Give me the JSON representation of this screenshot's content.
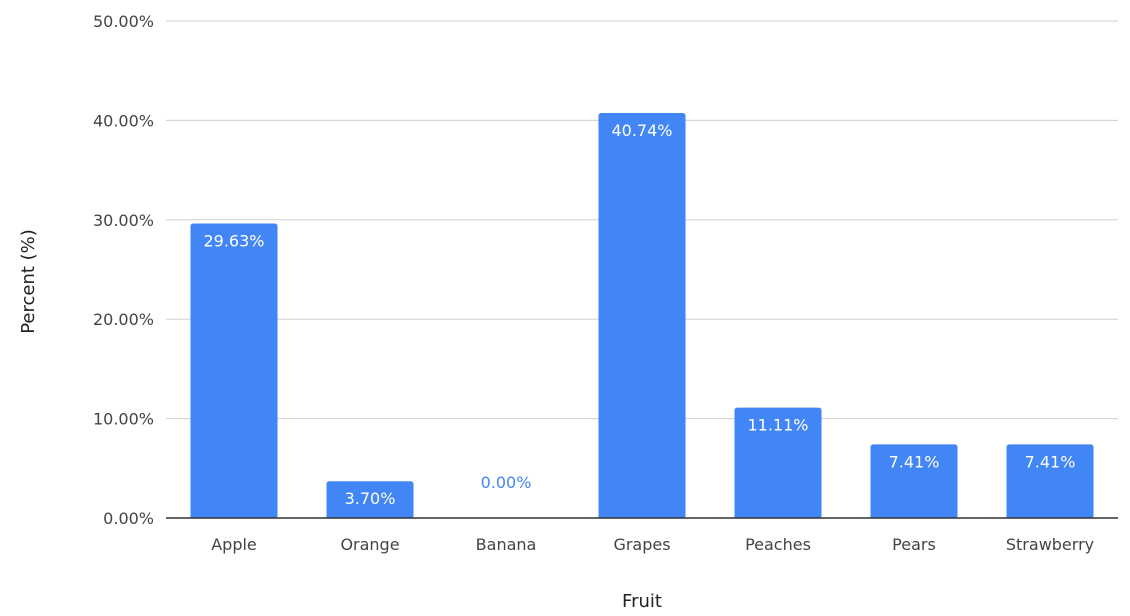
{
  "chart_data": {
    "type": "bar",
    "title": "",
    "xlabel": "Fruit",
    "ylabel": "Percent (%)",
    "categories": [
      "Apple",
      "Orange",
      "Banana",
      "Grapes",
      "Peaches",
      "Pears",
      "Strawberry"
    ],
    "values": [
      29.63,
      3.7,
      0.0,
      40.74,
      11.11,
      7.41,
      7.41
    ],
    "data_labels": [
      "29.63%",
      "3.70%",
      "0.00%",
      "40.74%",
      "11.11%",
      "7.41%",
      "7.41%"
    ],
    "ylim": [
      0,
      50
    ],
    "yticks": [
      0,
      10,
      20,
      30,
      40,
      50
    ],
    "ytick_labels": [
      "0.00%",
      "10.00%",
      "20.00%",
      "30.00%",
      "40.00%",
      "50.00%"
    ],
    "grid": true,
    "legend": "none",
    "bar_color": "#4285f4",
    "label_color_inside": "#ffffff",
    "label_color_outside": "#4285f4"
  }
}
